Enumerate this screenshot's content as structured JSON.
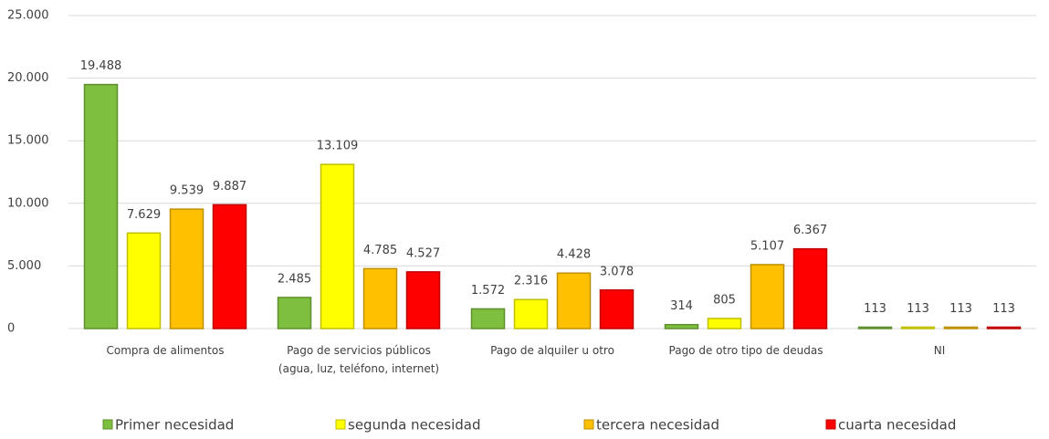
{
  "chart_data": {
    "type": "bar",
    "categories": [
      "Compra de alimentos",
      "Pago de servicios públicos\n(agua, luz, teléfono, internet)",
      "Pago de alquiler u otro",
      "Pago de otro tipo de deudas",
      "NI"
    ],
    "series": [
      {
        "name": "Primer necesidad",
        "color": "#7fbf3f",
        "values": [
          19488,
          2485,
          1572,
          314,
          113
        ],
        "value_labels": [
          "19.488",
          "2.485",
          "1.572",
          "314",
          "113"
        ]
      },
      {
        "name": "segunda necesidad",
        "color": "#ffff00",
        "values": [
          7629,
          13109,
          2316,
          805,
          113
        ],
        "value_labels": [
          "7.629",
          "13.109",
          "2.316",
          "805",
          "113"
        ]
      },
      {
        "name": "tercera necesidad",
        "color": "#ffc000",
        "values": [
          9539,
          4785,
          4428,
          5107,
          113
        ],
        "value_labels": [
          "9.539",
          "4.785",
          "4.428",
          "5.107",
          "113"
        ]
      },
      {
        "name": "cuarta necesidad",
        "color": "#ff0000",
        "values": [
          9887,
          4527,
          3078,
          6367,
          113
        ],
        "value_labels": [
          "9.887",
          "4.527",
          "3.078",
          "6.367",
          "113"
        ]
      }
    ],
    "ylim": [
      0,
      25000
    ],
    "yticks": [
      0,
      {
        "value": 5000,
        "label": "5.000"
      },
      {
        "value": 10000,
        "label": "10.000"
      },
      {
        "value": 15000,
        "label": "15.000"
      },
      {
        "value": 20000,
        "label": "20.000"
      },
      {
        "value": 25000,
        "label": "25.000"
      }
    ],
    "grid": true,
    "legend": "bottom"
  }
}
